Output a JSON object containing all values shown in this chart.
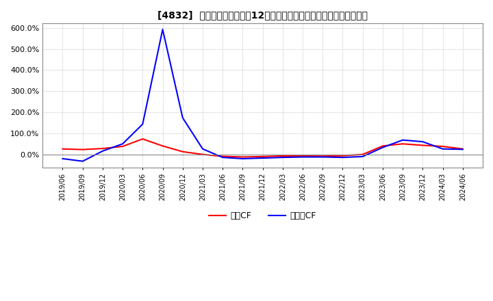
{
  "title": "[4832]  キャッシュフローの12か月移動合計の対前年同期増減率の推移",
  "legend": [
    "営業CF",
    "フリーCF"
  ],
  "line_colors": [
    "#ff0000",
    "#0000ff"
  ],
  "background_color": "#ffffff",
  "grid_color": "#aaaaaa",
  "ylim_raw": [
    -0.6,
    6.2
  ],
  "yticks_raw": [
    0.0,
    1.0,
    2.0,
    3.0,
    4.0,
    5.0,
    6.0
  ],
  "ytick_labels": [
    "0.0%",
    "100.0%",
    "200.0%",
    "300.0%",
    "400.0%",
    "500.0%",
    "600.0%"
  ],
  "dates": [
    "2019/06",
    "2019/09",
    "2019/12",
    "2020/03",
    "2020/06",
    "2020/09",
    "2020/12",
    "2021/03",
    "2021/06",
    "2021/09",
    "2021/12",
    "2022/03",
    "2022/06",
    "2022/09",
    "2022/12",
    "2023/03",
    "2023/06",
    "2023/09",
    "2023/12",
    "2024/03",
    "2024/06"
  ],
  "operating_cf": [
    0.28,
    0.25,
    0.3,
    0.4,
    0.75,
    0.42,
    0.15,
    0.02,
    -0.07,
    -0.1,
    -0.08,
    -0.05,
    -0.05,
    -0.06,
    -0.04,
    0.02,
    0.42,
    0.52,
    0.45,
    0.4,
    0.28
  ],
  "free_cf": [
    -0.18,
    -0.3,
    0.18,
    0.52,
    1.45,
    5.92,
    1.75,
    0.28,
    -0.12,
    -0.18,
    -0.15,
    -0.12,
    -0.1,
    -0.1,
    -0.12,
    -0.08,
    0.35,
    0.7,
    0.62,
    0.28,
    0.26
  ]
}
